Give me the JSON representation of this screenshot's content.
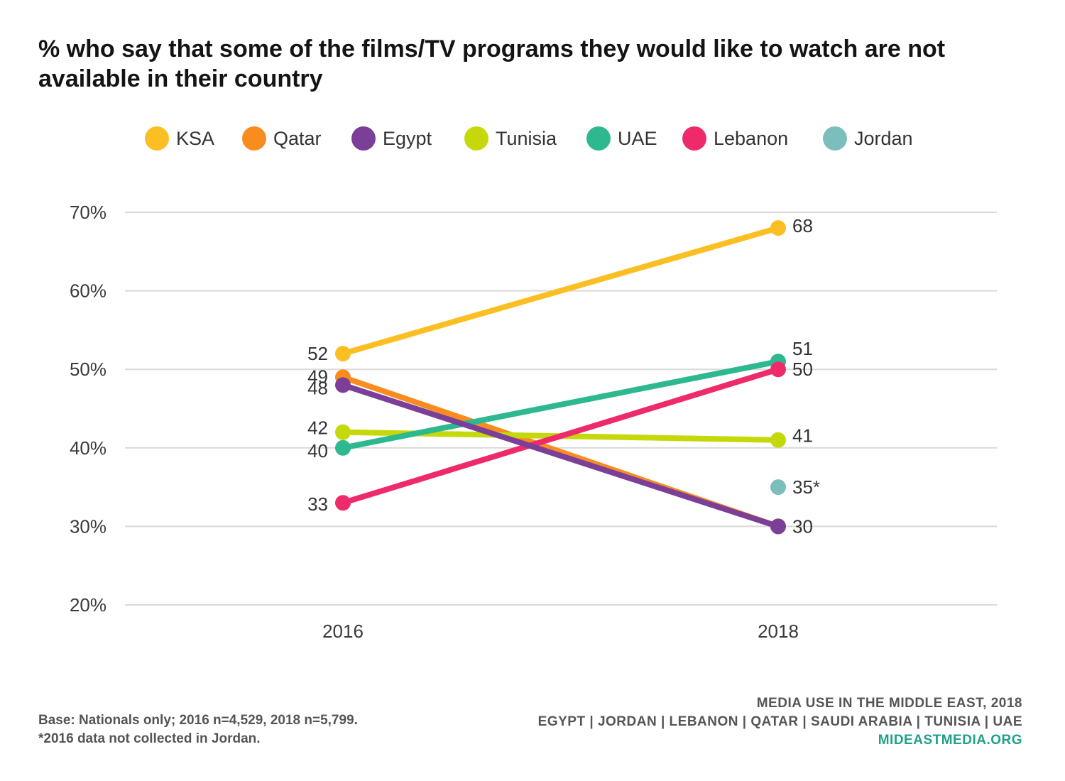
{
  "title": "% who say that some of the films/TV programs they would like to watch are not available in their country",
  "chart_data": {
    "type": "line",
    "x": [
      "2016",
      "2018"
    ],
    "y_ticks": [
      "20%",
      "30%",
      "40%",
      "50%",
      "60%",
      "70%"
    ],
    "ylim": [
      20,
      70
    ],
    "grid": true,
    "legend_position": "top",
    "series": [
      {
        "name": "KSA",
        "color": "#FBBF24",
        "values": [
          52,
          68
        ],
        "labels": [
          "52",
          "68"
        ]
      },
      {
        "name": "Qatar",
        "color": "#F98C1E",
        "values": [
          49,
          30
        ],
        "labels": [
          "49",
          ""
        ]
      },
      {
        "name": "Egypt",
        "color": "#7B3F98",
        "values": [
          48,
          30
        ],
        "labels": [
          "48",
          "30"
        ]
      },
      {
        "name": "Tunisia",
        "color": "#C5D90A",
        "values": [
          42,
          41
        ],
        "labels": [
          "42",
          "41"
        ]
      },
      {
        "name": "UAE",
        "color": "#2DB88F",
        "values": [
          40,
          51
        ],
        "labels": [
          "40",
          "51"
        ]
      },
      {
        "name": "Lebanon",
        "color": "#EF2A6A",
        "values": [
          33,
          50
        ],
        "labels": [
          "33",
          "50"
        ]
      },
      {
        "name": "Jordan",
        "color": "#7CBEBB",
        "values": [
          null,
          35
        ],
        "labels": [
          "",
          "35*"
        ]
      }
    ]
  },
  "footnote": {
    "line1": "Base: Nationals only; 2016 n=4,529, 2018 n=5,799.",
    "line2": "*2016 data not collected in Jordan."
  },
  "source": {
    "line1": "MEDIA USE IN THE MIDDLE EAST, 2018",
    "line2": "EGYPT | JORDAN | LEBANON | QATAR | SAUDI ARABIA | TUNISIA | UAE",
    "url": "MIDEASTMEDIA.ORG"
  }
}
